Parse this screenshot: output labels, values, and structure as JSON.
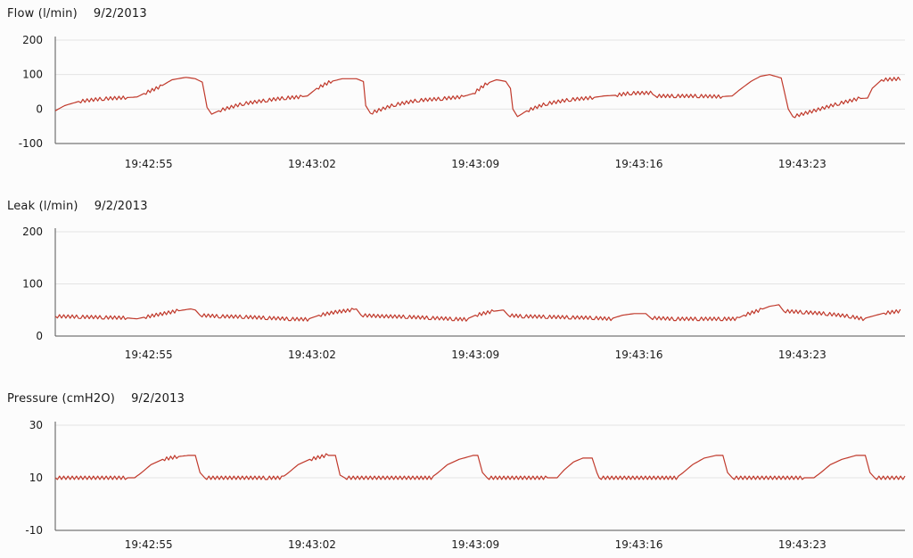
{
  "chart_data": [
    {
      "type": "line",
      "title": "Flow (l/min)",
      "date": "9/2/2013",
      "ylim": [
        -100,
        200
      ],
      "yticks": [
        200,
        100,
        0,
        -100
      ],
      "xticks": [
        "19:42:55",
        "19:43:02",
        "19:43:09",
        "19:43:16",
        "19:43:23"
      ],
      "xtick_times": [
        4,
        11,
        18,
        25,
        32
      ],
      "xlim": [
        0,
        36.4
      ],
      "grid": true,
      "color": "#c0392b",
      "points": [
        [
          0.0,
          -5
        ],
        [
          0.4,
          10
        ],
        [
          1.0,
          22
        ],
        [
          2.0,
          30
        ],
        [
          3.0,
          33
        ],
        [
          3.5,
          35
        ],
        [
          3.8,
          45
        ],
        [
          4.5,
          65
        ],
        [
          5.0,
          85
        ],
        [
          5.6,
          92
        ],
        [
          6.0,
          88
        ],
        [
          6.3,
          78
        ],
        [
          6.5,
          5
        ],
        [
          6.7,
          -15
        ],
        [
          7.0,
          -5
        ],
        [
          8.0,
          15
        ],
        [
          9.0,
          25
        ],
        [
          9.8,
          32
        ],
        [
          10.5,
          35
        ],
        [
          10.8,
          38
        ],
        [
          11.2,
          60
        ],
        [
          11.8,
          80
        ],
        [
          12.3,
          88
        ],
        [
          12.9,
          88
        ],
        [
          13.2,
          80
        ],
        [
          13.3,
          10
        ],
        [
          13.5,
          -12
        ],
        [
          14.5,
          12
        ],
        [
          15.5,
          25
        ],
        [
          16.5,
          30
        ],
        [
          17.4,
          35
        ],
        [
          17.9,
          45
        ],
        [
          18.5,
          75
        ],
        [
          18.9,
          85
        ],
        [
          19.3,
          80
        ],
        [
          19.5,
          60
        ],
        [
          19.6,
          0
        ],
        [
          19.8,
          -22
        ],
        [
          20.2,
          -5
        ],
        [
          21.0,
          15
        ],
        [
          22.0,
          27
        ],
        [
          23.0,
          33
        ],
        [
          23.5,
          38
        ],
        [
          24.0,
          40
        ],
        [
          24.6,
          46
        ],
        [
          25.5,
          47
        ],
        [
          25.7,
          38
        ],
        [
          26.5,
          38
        ],
        [
          27.5,
          38
        ],
        [
          28.5,
          36
        ],
        [
          29.0,
          38
        ],
        [
          29.3,
          55
        ],
        [
          29.8,
          80
        ],
        [
          30.2,
          95
        ],
        [
          30.6,
          100
        ],
        [
          31.1,
          90
        ],
        [
          31.2,
          60
        ],
        [
          31.4,
          0
        ],
        [
          31.6,
          -22
        ],
        [
          32.5,
          -5
        ],
        [
          33.5,
          15
        ],
        [
          34.4,
          30
        ],
        [
          34.8,
          32
        ],
        [
          35.0,
          60
        ],
        [
          35.4,
          85
        ],
        [
          36.2,
          88
        ]
      ]
    },
    {
      "type": "line",
      "title": "Leak (l/min)",
      "date": "9/2/2013",
      "ylim": [
        0,
        200
      ],
      "yticks": [
        200,
        100,
        0
      ],
      "xticks": [
        "19:42:55",
        "19:43:02",
        "19:43:09",
        "19:43:16",
        "19:43:23"
      ],
      "xtick_times": [
        4,
        11,
        18,
        25,
        32
      ],
      "xlim": [
        0,
        36.4
      ],
      "grid": true,
      "color": "#c0392b",
      "points": [
        [
          0.0,
          38
        ],
        [
          1.0,
          37
        ],
        [
          2.0,
          36
        ],
        [
          3.0,
          35
        ],
        [
          3.5,
          33
        ],
        [
          3.8,
          36
        ],
        [
          4.5,
          42
        ],
        [
          5.2,
          48
        ],
        [
          5.8,
          52
        ],
        [
          6.0,
          50
        ],
        [
          6.2,
          40
        ],
        [
          7.0,
          38
        ],
        [
          8.0,
          37
        ],
        [
          9.0,
          35
        ],
        [
          10.0,
          33
        ],
        [
          10.8,
          32
        ],
        [
          11.3,
          40
        ],
        [
          12.0,
          46
        ],
        [
          12.7,
          50
        ],
        [
          12.9,
          52
        ],
        [
          13.1,
          40
        ],
        [
          14.0,
          38
        ],
        [
          15.0,
          37
        ],
        [
          16.0,
          35
        ],
        [
          17.0,
          33
        ],
        [
          17.6,
          32
        ],
        [
          18.0,
          40
        ],
        [
          18.7,
          47
        ],
        [
          19.2,
          50
        ],
        [
          19.4,
          40
        ],
        [
          20.0,
          38
        ],
        [
          21.0,
          37
        ],
        [
          22.0,
          36
        ],
        [
          23.0,
          35
        ],
        [
          23.8,
          33
        ],
        [
          24.3,
          40
        ],
        [
          24.8,
          43
        ],
        [
          25.3,
          43
        ],
        [
          25.5,
          35
        ],
        [
          26.5,
          33
        ],
        [
          27.5,
          33
        ],
        [
          28.5,
          33
        ],
        [
          29.2,
          33
        ],
        [
          29.5,
          40
        ],
        [
          30.2,
          50
        ],
        [
          30.6,
          57
        ],
        [
          31.0,
          60
        ],
        [
          31.2,
          48
        ],
        [
          32.0,
          46
        ],
        [
          33.0,
          43
        ],
        [
          34.0,
          38
        ],
        [
          34.6,
          33
        ],
        [
          35.0,
          38
        ],
        [
          35.5,
          44
        ],
        [
          36.2,
          48
        ]
      ]
    },
    {
      "type": "line",
      "title": "Pressure (cmH2O)",
      "date": "9/2/2013",
      "ylim": [
        -10,
        30
      ],
      "yticks": [
        30,
        10,
        -10
      ],
      "xticks": [
        "19:42:55",
        "19:43:02",
        "19:43:09",
        "19:43:16",
        "19:43:23"
      ],
      "xtick_times": [
        4,
        11,
        18,
        25,
        32
      ],
      "xlim": [
        0,
        36.4
      ],
      "grid": true,
      "color": "#c0392b",
      "points": [
        [
          0.0,
          10
        ],
        [
          3.0,
          10
        ],
        [
          3.4,
          10
        ],
        [
          3.7,
          12
        ],
        [
          4.1,
          15
        ],
        [
          4.6,
          17
        ],
        [
          5.2,
          18
        ],
        [
          5.7,
          18.5
        ],
        [
          6.0,
          18.5
        ],
        [
          6.2,
          12
        ],
        [
          6.4,
          10
        ],
        [
          9.0,
          10
        ],
        [
          9.7,
          10
        ],
        [
          10.0,
          12
        ],
        [
          10.4,
          15
        ],
        [
          10.9,
          17
        ],
        [
          11.6,
          18.5
        ],
        [
          12.0,
          18.5
        ],
        [
          12.2,
          11
        ],
        [
          12.4,
          10
        ],
        [
          15.5,
          10
        ],
        [
          16.1,
          10
        ],
        [
          16.4,
          12
        ],
        [
          16.8,
          15
        ],
        [
          17.3,
          17
        ],
        [
          17.9,
          18.5
        ],
        [
          18.1,
          18.5
        ],
        [
          18.3,
          12
        ],
        [
          18.5,
          10
        ],
        [
          21.0,
          10
        ],
        [
          21.5,
          10
        ],
        [
          21.8,
          13
        ],
        [
          22.2,
          16
        ],
        [
          22.6,
          17.5
        ],
        [
          23.0,
          17.5
        ],
        [
          23.2,
          12
        ],
        [
          23.3,
          10
        ],
        [
          26.0,
          10
        ],
        [
          26.6,
          10
        ],
        [
          26.9,
          12
        ],
        [
          27.3,
          15
        ],
        [
          27.8,
          17.5
        ],
        [
          28.3,
          18.5
        ],
        [
          28.6,
          18.5
        ],
        [
          28.8,
          12
        ],
        [
          29.0,
          10
        ],
        [
          32.0,
          10
        ],
        [
          32.5,
          10
        ],
        [
          32.8,
          12
        ],
        [
          33.2,
          15
        ],
        [
          33.7,
          17
        ],
        [
          34.3,
          18.5
        ],
        [
          34.7,
          18.5
        ],
        [
          34.9,
          12
        ],
        [
          35.1,
          10
        ],
        [
          36.4,
          10
        ]
      ]
    }
  ]
}
